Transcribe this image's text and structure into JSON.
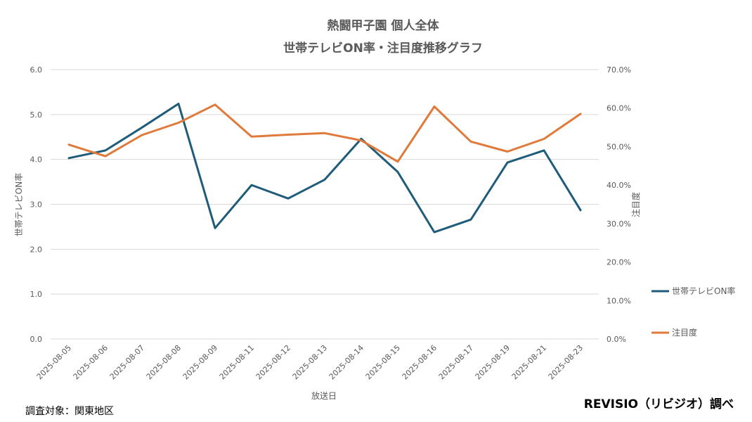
{
  "chart_data": {
    "type": "line",
    "title": "熱闘甲子園 個人全体",
    "subtitle": "世帯テレビON率・注目度推移グラフ",
    "xlabel": "放送日",
    "ylabel_left": "世帯テレビON率",
    "ylabel_right": "注目度",
    "categories": [
      "2025-08-05",
      "2025-08-06",
      "2025-08-07",
      "2025-08-08",
      "2025-08-09",
      "2025-08-11",
      "2025-08-12",
      "2025-08-13",
      "2025-08-14",
      "2025-08-15",
      "2025-08-16",
      "2025-08-17",
      "2025-08-19",
      "2025-08-21",
      "2025-08-23"
    ],
    "ylim_left": [
      0,
      6
    ],
    "yticks_left": [
      "0.0",
      "1.0",
      "2.0",
      "3.0",
      "4.0",
      "5.0",
      "6.0"
    ],
    "ylim_right": [
      0,
      70
    ],
    "yticks_right": [
      "0.0%",
      "10.0%",
      "20.0%",
      "30.0%",
      "40.0%",
      "50.0%",
      "60.0%",
      "70.0%"
    ],
    "grid": true,
    "legend_position": "right",
    "series": [
      {
        "name": "世帯テレビON率",
        "axis": "left",
        "color": "#1f5c7a",
        "values": [
          4.03,
          4.2,
          4.71,
          5.24,
          2.47,
          3.43,
          3.13,
          3.55,
          4.46,
          3.72,
          2.38,
          2.66,
          3.93,
          4.2,
          2.87
        ]
      },
      {
        "name": "注目度",
        "axis": "right",
        "color": "#e07a3a",
        "values": [
          50.5,
          47.5,
          53.0,
          56.2,
          60.9,
          52.6,
          53.1,
          53.5,
          51.6,
          46.1,
          60.4,
          51.3,
          48.7,
          52.0,
          58.5
        ]
      }
    ]
  },
  "footer": {
    "left": "調査対象：関東地区",
    "right": "REVISIO（リビジオ）調べ"
  }
}
